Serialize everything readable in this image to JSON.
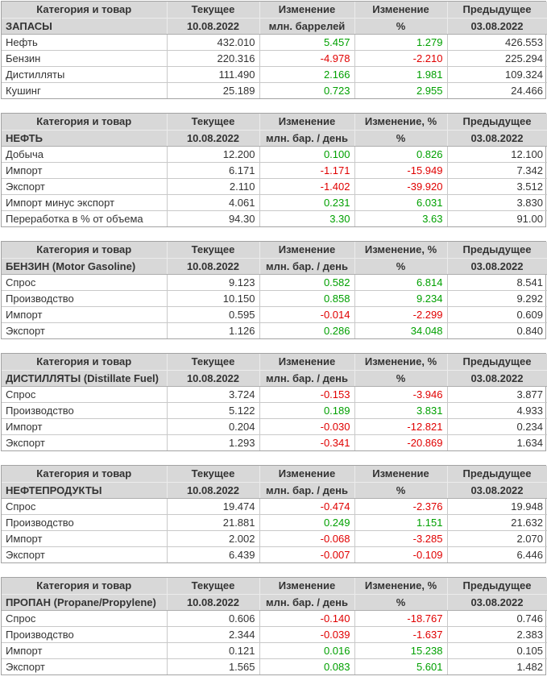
{
  "colors": {
    "positive": "#00a000",
    "negative": "#e00000",
    "header_background": "#d8d8d8",
    "text": "#333333"
  },
  "chart_data": [
    {
      "type": "table",
      "id": "zapasy",
      "columns": [
        "Категория и товар",
        "Текущее",
        "Изменение",
        "Изменение",
        "Предыдущее"
      ],
      "subheader": [
        "ЗАПАСЫ",
        "10.08.2022",
        "млн. баррелей",
        "%",
        "03.08.2022"
      ],
      "rows": [
        [
          "Нефть",
          "432.010",
          "5.457",
          "1.279",
          "426.553"
        ],
        [
          "Бензин",
          "220.316",
          "-4.978",
          "-2.210",
          "225.294"
        ],
        [
          "Дистилляты",
          "111.490",
          "2.166",
          "1.981",
          "109.324"
        ],
        [
          "Кушинг",
          "25.189",
          "0.723",
          "2.955",
          "24.466"
        ]
      ]
    },
    {
      "type": "table",
      "id": "neft",
      "columns": [
        "Категория и товар",
        "Текущее",
        "Изменение",
        "Изменение, %",
        "Предыдущее"
      ],
      "subheader": [
        "НЕФТЬ",
        "10.08.2022",
        "млн. бар. / день",
        "%",
        "03.08.2022"
      ],
      "rows": [
        [
          "Добыча",
          "12.200",
          "0.100",
          "0.826",
          "12.100"
        ],
        [
          "Импорт",
          "6.171",
          "-1.171",
          "-15.949",
          "7.342"
        ],
        [
          "Экспорт",
          "2.110",
          "-1.402",
          "-39.920",
          "3.512"
        ],
        [
          "Импорт минус экспорт",
          "4.061",
          "0.231",
          "6.031",
          "3.830"
        ],
        [
          "Переработка в % от объема",
          "94.30",
          "3.30",
          "3.63",
          "91.00"
        ]
      ]
    },
    {
      "type": "table",
      "id": "benzin",
      "columns": [
        "Категория и товар",
        "Текущее",
        "Изменение",
        "Изменение, %",
        "Предыдущее"
      ],
      "subheader": [
        "БЕНЗИН (Motor Gasoline)",
        "10.08.2022",
        "млн. бар. / день",
        "%",
        "03.08.2022"
      ],
      "rows": [
        [
          "Спрос",
          "9.123",
          "0.582",
          "6.814",
          "8.541"
        ],
        [
          "Производство",
          "10.150",
          "0.858",
          "9.234",
          "9.292"
        ],
        [
          "Импорт",
          "0.595",
          "-0.014",
          "-2.299",
          "0.609"
        ],
        [
          "Экспорт",
          "1.126",
          "0.286",
          "34.048",
          "0.840"
        ]
      ]
    },
    {
      "type": "table",
      "id": "distillyaty",
      "columns": [
        "Категория и товар",
        "Текущее",
        "Изменение",
        "Изменение, %",
        "Предыдущее"
      ],
      "subheader": [
        "ДИСТИЛЛЯТЫ (Distillate Fuel)",
        "10.08.2022",
        "млн. бар. / день",
        "%",
        "03.08.2022"
      ],
      "rows": [
        [
          "Спрос",
          "3.724",
          "-0.153",
          "-3.946",
          "3.877"
        ],
        [
          "Производство",
          "5.122",
          "0.189",
          "3.831",
          "4.933"
        ],
        [
          "Импорт",
          "0.204",
          "-0.030",
          "-12.821",
          "0.234"
        ],
        [
          "Экспорт",
          "1.293",
          "-0.341",
          "-20.869",
          "1.634"
        ]
      ]
    },
    {
      "type": "table",
      "id": "nefteprodukty",
      "columns": [
        "Категория и товар",
        "Текущее",
        "Изменение",
        "Изменение",
        "Предыдущее"
      ],
      "subheader": [
        "НЕФТЕПРОДУКТЫ",
        "10.08.2022",
        "млн. бар. / день",
        "%",
        "03.08.2022"
      ],
      "rows": [
        [
          "Спрос",
          "19.474",
          "-0.474",
          "-2.376",
          "19.948"
        ],
        [
          "Производство",
          "21.881",
          "0.249",
          "1.151",
          "21.632"
        ],
        [
          "Импорт",
          "2.002",
          "-0.068",
          "-3.285",
          "2.070"
        ],
        [
          "Экспорт",
          "6.439",
          "-0.007",
          "-0.109",
          "6.446"
        ]
      ]
    },
    {
      "type": "table",
      "id": "propan",
      "columns": [
        "Категория и товар",
        "Текущее",
        "Изменение",
        "Изменение, %",
        "Предыдущее"
      ],
      "subheader": [
        "ПРОПАН (Propane/Propylene)",
        "10.08.2022",
        "млн. бар. / день",
        "%",
        "03.08.2022"
      ],
      "rows": [
        [
          "Спрос",
          "0.606",
          "-0.140",
          "-18.767",
          "0.746"
        ],
        [
          "Производство",
          "2.344",
          "-0.039",
          "-1.637",
          "2.383"
        ],
        [
          "Импорт",
          "0.121",
          "0.016",
          "15.238",
          "0.105"
        ],
        [
          "Экспорт",
          "1.565",
          "0.083",
          "5.601",
          "1.482"
        ]
      ]
    }
  ]
}
